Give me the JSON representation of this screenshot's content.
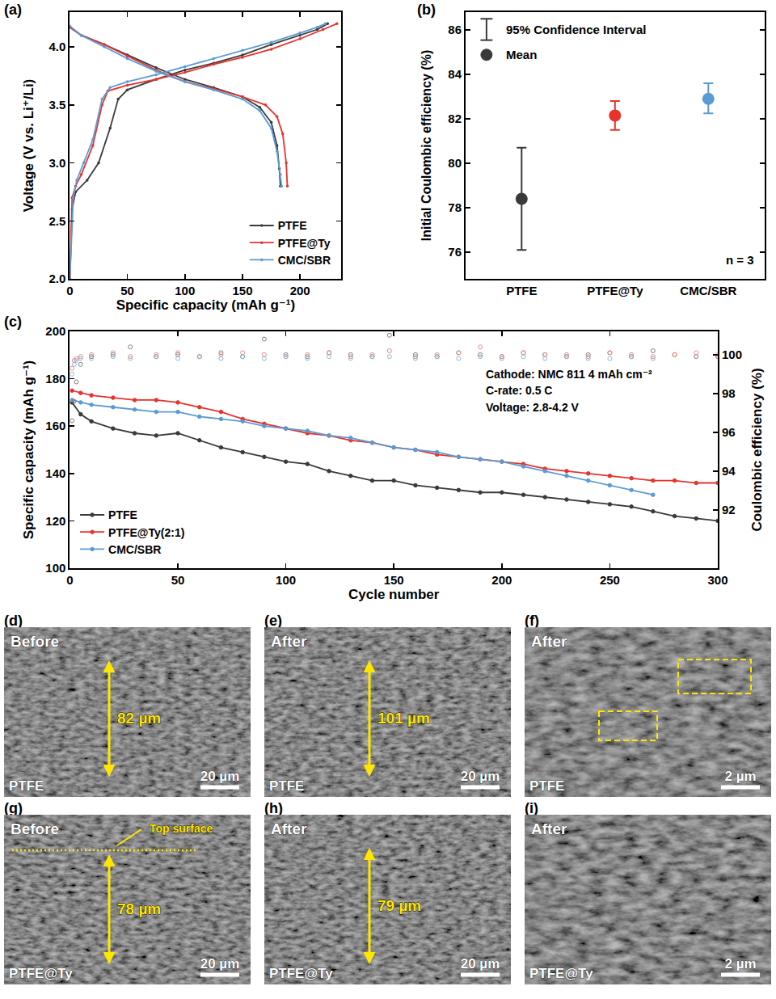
{
  "chart_data": [
    {
      "panel": "(a)",
      "type": "line",
      "x_label": "Specific capacity (mAh g⁻¹)",
      "y_label": "Voltage (V vs. Li⁺/Li)",
      "xlim": [
        0,
        236
      ],
      "xticks": [
        0,
        50,
        100,
        150,
        200
      ],
      "ylim": [
        2.0,
        4.3
      ],
      "yticks": [
        {
          "value": 2.0,
          "label": "2.0"
        },
        {
          "value": 2.5,
          "label": "2.5"
        },
        {
          "value": 3.0,
          "label": "3.0"
        },
        {
          "value": 3.5,
          "label": "3.5"
        },
        {
          "value": 4.0,
          "label": "4.0"
        }
      ],
      "grid": false,
      "legend": "bottom right",
      "series": [
        {
          "name": "PTFE",
          "color": "#3a3a3a",
          "marker": "circle",
          "x": [
            0,
            2,
            5,
            15,
            25,
            35,
            42,
            50,
            75,
            100,
            125,
            150,
            175,
            200,
            215,
            224,
            null,
            0,
            10,
            30,
            50,
            75,
            100,
            125,
            150,
            165,
            175,
            180,
            182,
            183
          ],
          "values": [
            2.0,
            2.6,
            2.75,
            2.85,
            3.0,
            3.3,
            3.55,
            3.63,
            3.72,
            3.8,
            3.86,
            3.93,
            4.02,
            4.1,
            4.15,
            4.2,
            null,
            4.17,
            4.1,
            4.02,
            3.93,
            3.82,
            3.72,
            3.65,
            3.57,
            3.48,
            3.35,
            3.15,
            2.95,
            2.8
          ]
        },
        {
          "name": "PTFE@Ty",
          "color": "#e8322c",
          "marker": "circle",
          "x": [
            0,
            2,
            5,
            10,
            20,
            28,
            33,
            50,
            75,
            100,
            125,
            150,
            175,
            200,
            220,
            232,
            null,
            0,
            10,
            30,
            50,
            75,
            100,
            125,
            150,
            170,
            180,
            185,
            188,
            189
          ],
          "values": [
            2.0,
            2.7,
            2.8,
            2.9,
            3.15,
            3.5,
            3.62,
            3.67,
            3.72,
            3.78,
            3.85,
            3.91,
            3.98,
            4.07,
            4.15,
            4.2,
            null,
            4.17,
            4.1,
            4.02,
            3.92,
            3.8,
            3.7,
            3.64,
            3.57,
            3.5,
            3.4,
            3.25,
            3.0,
            2.8
          ]
        },
        {
          "name": "CMC/SBR",
          "color": "#5b9bd5",
          "marker": "circle",
          "x": [
            0,
            3,
            6,
            12,
            20,
            28,
            35,
            50,
            75,
            100,
            125,
            150,
            175,
            200,
            215,
            222,
            null,
            0,
            10,
            30,
            50,
            75,
            100,
            125,
            150,
            165,
            175,
            180,
            183,
            184
          ],
          "values": [
            2.0,
            2.7,
            2.85,
            3.0,
            3.2,
            3.55,
            3.65,
            3.7,
            3.76,
            3.83,
            3.9,
            3.97,
            4.04,
            4.12,
            4.17,
            4.2,
            null,
            4.18,
            4.1,
            4.0,
            3.9,
            3.79,
            3.7,
            3.63,
            3.55,
            3.45,
            3.3,
            3.1,
            2.9,
            2.8
          ]
        }
      ]
    },
    {
      "panel": "(b)",
      "type": "scatter",
      "y_label": "Initial Coulombic efficiency (%)",
      "categories": [
        "PTFE",
        "PTFE@Ty",
        "CMC/SBR"
      ],
      "values": [
        78.4,
        82.15,
        82.9
      ],
      "ci_low": [
        76.1,
        81.5,
        82.25
      ],
      "ci_high": [
        80.7,
        82.8,
        83.6
      ],
      "colors": [
        "#3a3a3a",
        "#e8322c",
        "#5b9bd5"
      ],
      "marker": "circle",
      "ylim": [
        74.8,
        86.8
      ],
      "yticks": [
        76,
        78,
        80,
        82,
        84,
        86
      ],
      "grid": false,
      "legend_labels": {
        "error_bar": "95% Confidence Interval",
        "mean": "Mean"
      },
      "annotations": [
        "n = 3"
      ]
    },
    {
      "panel": "(c)",
      "type": "line",
      "x_label": "Cycle number",
      "y_label": "Specific capacity (mAh g⁻¹)",
      "y2_label": "Coulombic efficiency (%)",
      "xlim": [
        0,
        300
      ],
      "xticks": [
        0,
        50,
        100,
        150,
        200,
        250,
        300
      ],
      "ylim": [
        100,
        200
      ],
      "yticks": [
        100,
        120,
        140,
        160,
        180,
        200
      ],
      "y2lim": [
        89,
        101.2
      ],
      "y2ticks": [
        92,
        94,
        96,
        98,
        100
      ],
      "grid": false,
      "legend": "bottom left",
      "annotations": [
        "Cathode: NMC 811 4 mAh cm⁻²",
        "C-rate: 0.5 C",
        "Voltage: 2.8-4.2 V"
      ],
      "series": [
        {
          "name": "PTFE",
          "color": "#3a3a3a",
          "marker": "circle",
          "x": [
            1,
            5,
            10,
            20,
            30,
            40,
            50,
            60,
            70,
            80,
            90,
            100,
            110,
            120,
            130,
            140,
            150,
            160,
            170,
            180,
            190,
            200,
            210,
            220,
            230,
            240,
            250,
            260,
            270,
            280,
            290,
            300
          ],
          "values": [
            170,
            165,
            162,
            159,
            157,
            156,
            157,
            154,
            151,
            149,
            147,
            145,
            144,
            141,
            139,
            137,
            137,
            135,
            134,
            133,
            132,
            132,
            131,
            130,
            129,
            128,
            127,
            126,
            124,
            122,
            121,
            120
          ]
        },
        {
          "name": "PTFE@Ty(2:1)",
          "color": "#e8322c",
          "marker": "circle",
          "x": [
            1,
            5,
            10,
            20,
            30,
            40,
            50,
            60,
            70,
            80,
            90,
            100,
            110,
            120,
            130,
            140,
            150,
            160,
            170,
            180,
            190,
            200,
            210,
            220,
            230,
            240,
            250,
            260,
            270,
            280,
            290,
            300
          ],
          "values": [
            175,
            174,
            173,
            172,
            171,
            171,
            170,
            168,
            166,
            163,
            161,
            159,
            157,
            156,
            154,
            153,
            151,
            150,
            148,
            147,
            146,
            145,
            144,
            142,
            141,
            140,
            139,
            138,
            137,
            137,
            136,
            136
          ]
        },
        {
          "name": "CMC/SBR",
          "color": "#5b9bd5",
          "marker": "circle",
          "x": [
            1,
            5,
            10,
            20,
            30,
            40,
            50,
            60,
            70,
            80,
            90,
            100,
            110,
            120,
            130,
            140,
            150,
            160,
            170,
            180,
            190,
            200,
            210,
            220,
            230,
            240,
            250,
            260,
            270,
            280,
            290,
            300
          ],
          "values": [
            171,
            170,
            169,
            168,
            167,
            166,
            166,
            164,
            163,
            162,
            160,
            159,
            158,
            156,
            155,
            153,
            151,
            150,
            149,
            147,
            146,
            145,
            143,
            141,
            139,
            137,
            135,
            133,
            131,
            null,
            null,
            null
          ]
        },
        {
          "type": "scatter",
          "axis": "y2",
          "color": "#7f7f7f",
          "marker": "circle-open",
          "x": [
            1,
            2,
            3,
            5,
            10,
            20,
            28,
            40,
            50,
            60,
            70,
            80,
            90,
            100,
            110,
            120,
            130,
            140,
            148,
            160,
            170,
            180,
            190,
            200,
            210,
            220,
            230,
            240,
            250,
            260,
            270,
            280,
            290,
            300
          ],
          "values": [
            96.6,
            97.6,
            98.6,
            99.5,
            99.9,
            100.0,
            100.4,
            99.9,
            100.0,
            99.9,
            100.1,
            99.9,
            100.8,
            100.0,
            99.9,
            100.1,
            100.0,
            99.9,
            101.0,
            100.0,
            99.9,
            100.1,
            100.0,
            99.9,
            100.1,
            100.0,
            99.9,
            100.0,
            100.1,
            99.9,
            100.2,
            100.0,
            99.9,
            99.9
          ]
        },
        {
          "type": "scatter",
          "axis": "y2",
          "color": "#f08a84",
          "marker": "circle-open",
          "x": [
            1,
            2,
            3,
            5,
            10,
            20,
            28,
            40,
            50,
            60,
            70,
            80,
            90,
            100,
            110,
            120,
            130,
            140,
            148,
            160,
            170,
            180,
            190,
            200,
            210,
            220,
            230,
            240,
            250,
            260,
            270,
            280,
            290,
            300
          ],
          "values": [
            99.3,
            99.7,
            99.8,
            99.9,
            100.0,
            100.1,
            99.9,
            100.0,
            100.1,
            99.9,
            100.0,
            100.1,
            100.0,
            99.9,
            100.0,
            100.1,
            99.9,
            100.0,
            100.2,
            99.9,
            100.0,
            100.1,
            100.4,
            99.9,
            100.1,
            100.0,
            100.0,
            99.9,
            100.1,
            100.0,
            99.9,
            100.0,
            100.1,
            100.0
          ]
        },
        {
          "type": "scatter",
          "axis": "y2",
          "color": "#8fb8e0",
          "marker": "circle-open",
          "x": [
            1,
            2,
            3,
            5,
            10,
            20,
            28,
            40,
            50,
            60,
            70,
            80,
            90,
            100,
            110,
            120,
            130,
            140,
            148,
            160,
            170,
            180,
            190,
            200,
            210,
            220,
            230,
            240,
            250,
            260,
            270,
            280,
            290,
            300
          ],
          "values": [
            99.0,
            99.5,
            99.7,
            99.8,
            99.8,
            99.9,
            99.8,
            99.9,
            99.8,
            99.9,
            99.8,
            99.9,
            99.8,
            99.9,
            99.8,
            99.9,
            99.8,
            99.9,
            99.9,
            99.8,
            99.9,
            99.8,
            99.9,
            99.8,
            99.9,
            99.8,
            99.9,
            99.8,
            99.8,
            99.9,
            99.8,
            null,
            null,
            null
          ]
        }
      ]
    }
  ],
  "sem_images": [
    {
      "panel": "(d)",
      "state": "Before",
      "sample": "PTFE",
      "thickness": "82 µm",
      "scale_bar": "20 µm"
    },
    {
      "panel": "(e)",
      "state": "After",
      "sample": "PTFE",
      "thickness": "101 µm",
      "scale_bar": "20 µm"
    },
    {
      "panel": "(f)",
      "state": "After",
      "sample": "PTFE",
      "scale_bar": "2 µm",
      "marked_regions": 2
    },
    {
      "panel": "(g)",
      "state": "Before",
      "sample": "PTFE@Ty",
      "thickness": "78 µm",
      "scale_bar": "20 µm",
      "note": "Top surface"
    },
    {
      "panel": "(h)",
      "state": "After",
      "sample": "PTFE@Ty",
      "thickness": "79 µm",
      "scale_bar": "20 µm"
    },
    {
      "panel": "(i)",
      "state": "After",
      "sample": "PTFE@Ty",
      "scale_bar": "2 µm"
    }
  ]
}
